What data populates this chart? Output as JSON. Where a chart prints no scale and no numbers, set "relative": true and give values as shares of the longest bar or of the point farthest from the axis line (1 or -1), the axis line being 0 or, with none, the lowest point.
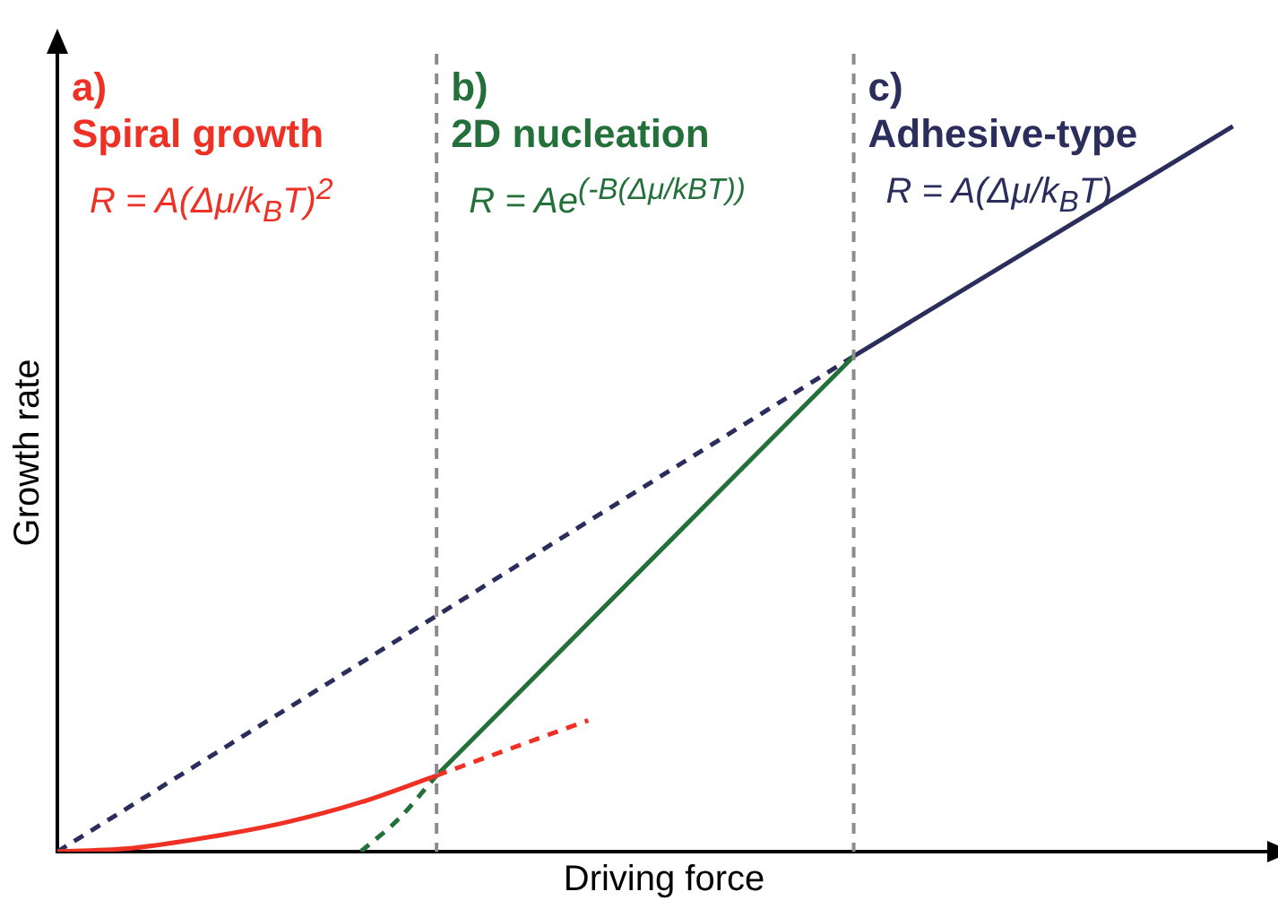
{
  "chart_data": {
    "type": "line",
    "xlabel": "Driving force",
    "ylabel": "Growth rate",
    "relative": true,
    "categories": [
      null,
      null,
      null,
      null,
      null,
      null,
      null,
      null,
      null,
      null,
      null,
      null,
      null,
      null,
      null,
      null,
      null,
      null,
      null,
      null,
      null,
      null,
      null,
      null,
      null,
      null,
      null,
      null,
      null,
      null,
      null,
      null,
      null
    ],
    "series": [
      {
        "color": "#ee3124",
        "line_style": "solid",
        "values": [
          0,
          null,
          0.005,
          null,
          0.02,
          null,
          0.04,
          null,
          0.068,
          null,
          0.105,
          null,
          null,
          null,
          null,
          null,
          null,
          null,
          null,
          null,
          null,
          null,
          null,
          null,
          null,
          null,
          null,
          null,
          null,
          null,
          null,
          null,
          null
        ]
      },
      {
        "color": "#ee3124",
        "line_style": "dashed",
        "values": [
          null,
          null,
          null,
          null,
          null,
          null,
          null,
          null,
          null,
          null,
          0.105,
          null,
          null,
          null,
          0.181,
          null,
          null,
          null,
          null,
          null,
          null,
          null,
          null,
          null,
          null,
          null,
          null,
          null,
          null,
          null,
          null,
          null,
          null
        ]
      },
      {
        "color": "#23703a",
        "line_style": "dashed",
        "values": [
          null,
          null,
          null,
          null,
          null,
          null,
          null,
          null,
          0,
          0.045,
          0.105,
          null,
          null,
          null,
          null,
          null,
          null,
          null,
          null,
          null,
          null,
          null,
          null,
          null,
          null,
          null,
          null,
          null,
          null,
          null,
          null,
          null,
          null
        ]
      },
      {
        "color": "#23703a",
        "line_style": "solid",
        "values": [
          null,
          null,
          null,
          null,
          null,
          null,
          null,
          null,
          null,
          null,
          0.105,
          null,
          null,
          null,
          null,
          null,
          null,
          null,
          null,
          null,
          null,
          0.683,
          null,
          null,
          null,
          null,
          null,
          null,
          null,
          null,
          null,
          null,
          null
        ]
      },
      {
        "color": "#2b2d5c",
        "line_style": "dashed",
        "values": [
          0,
          null,
          null,
          null,
          null,
          null,
          null,
          null,
          null,
          null,
          null,
          null,
          null,
          null,
          null,
          null,
          null,
          null,
          null,
          null,
          null,
          0.683,
          null,
          null,
          null,
          null,
          null,
          null,
          null,
          null,
          null,
          null,
          null
        ]
      },
      {
        "color": "#2b2d5c",
        "line_style": "solid",
        "values": [
          null,
          null,
          null,
          null,
          null,
          null,
          null,
          null,
          null,
          null,
          null,
          null,
          null,
          null,
          null,
          null,
          null,
          null,
          null,
          null,
          null,
          0.683,
          null,
          null,
          null,
          null,
          null,
          null,
          null,
          null,
          null,
          1,
          null
        ]
      }
    ],
    "annotations": [
      "a)",
      "Spiral growth",
      "R = A(Δμ/k$_{B}$T)$^{2}$",
      "b)",
      "2D nucleation",
      "R = Ae$^{(-B(Δμ/kBT))}$",
      "c)",
      "Adhesive-type",
      "R = A(Δμ/k$_{B}$T)"
    ],
    "grid": false,
    "legend": false,
    "marker": "none"
  }
}
